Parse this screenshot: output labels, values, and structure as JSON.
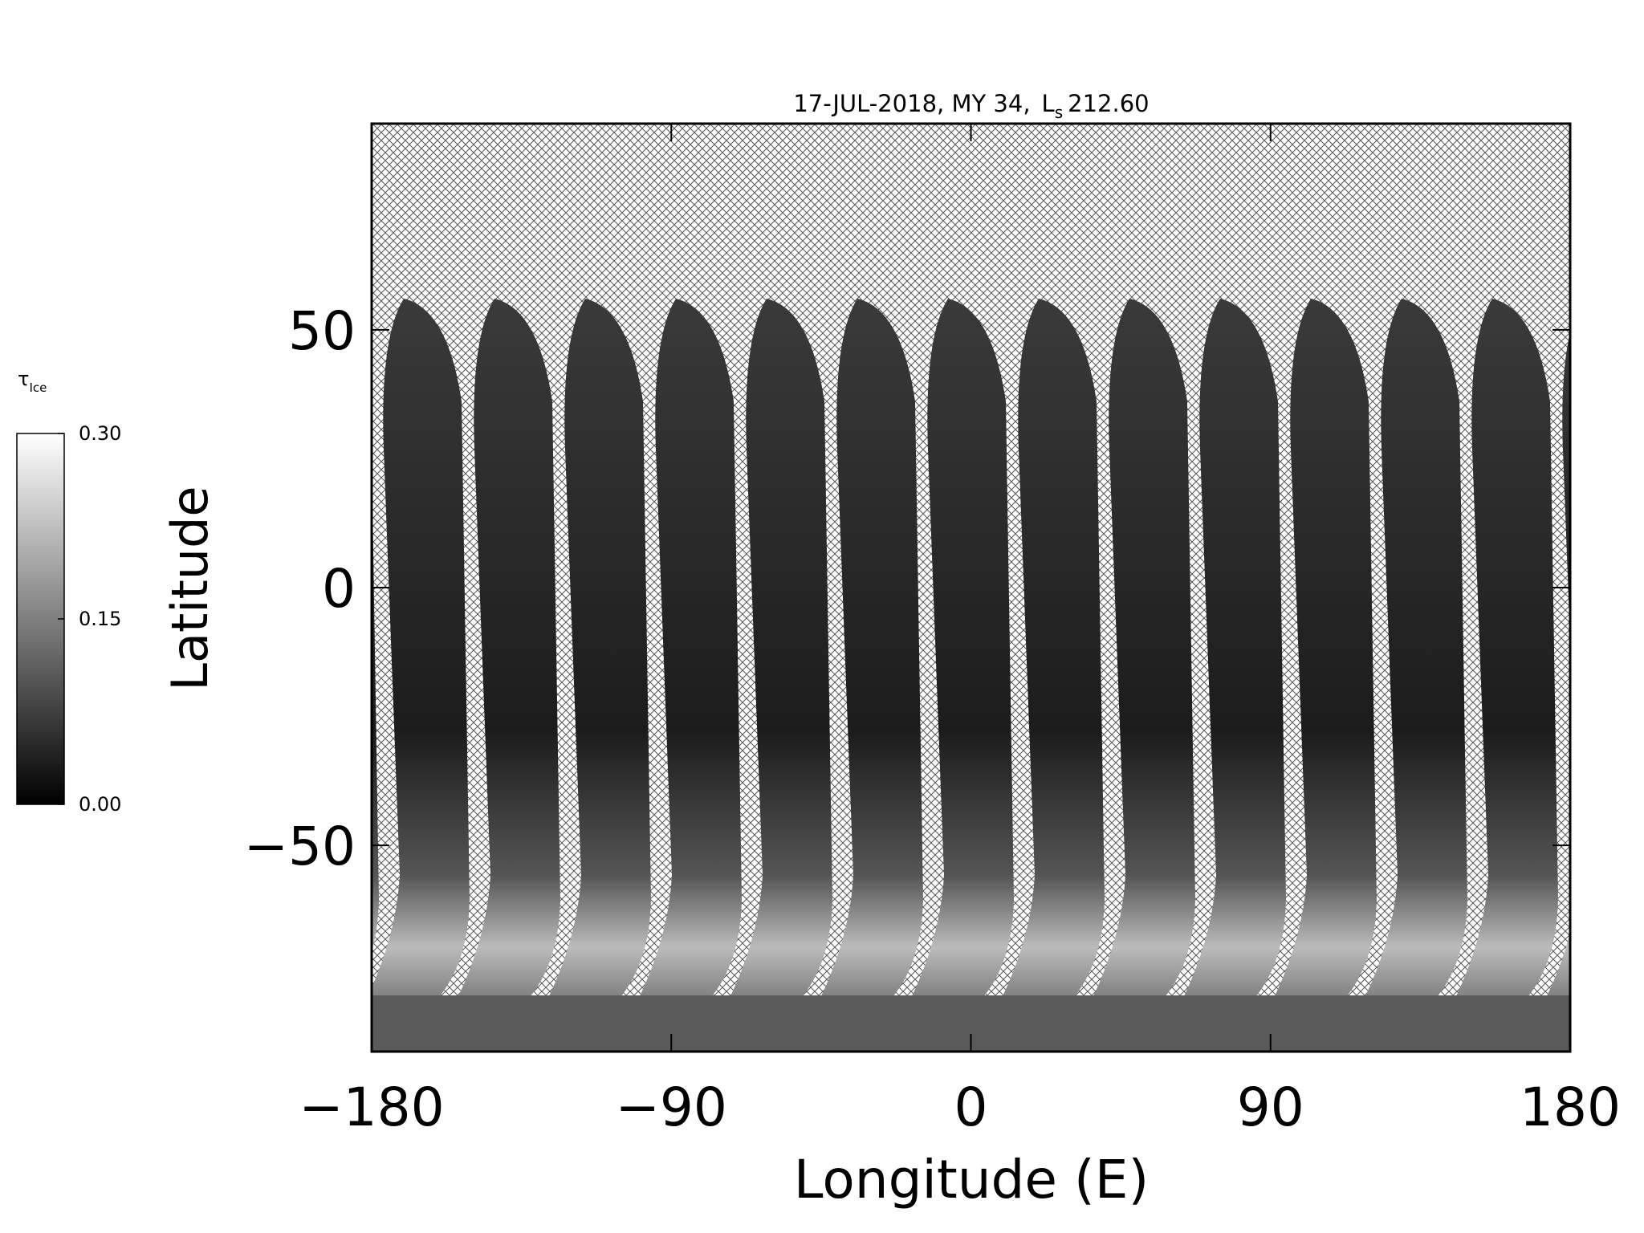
{
  "chart_data": {
    "type": "map",
    "title": {
      "date": "17-JUL-2018, MY 34,",
      "symbol": "L",
      "subscript": "s",
      "value": "212.60"
    },
    "x_label": "Longitude (E)",
    "y_label": "Latitude",
    "xlim": [
      -180,
      180
    ],
    "ylim": [
      -90,
      90
    ],
    "xticks": [
      {
        "value": -180,
        "label": "−180"
      },
      {
        "value": -90,
        "label": "−90"
      },
      0,
      90,
      180
    ],
    "yticks": [
      {
        "value": -50,
        "label": "−50"
      },
      0,
      50
    ],
    "colorbar": {
      "symbol": "τ",
      "subscript": "Ice",
      "lim": [
        0,
        0.3
      ],
      "ticks": [
        {
          "value": 0,
          "label": "0.00"
        },
        {
          "value": 0.15,
          "label": "0.15"
        },
        {
          "value": 0.3,
          "label": "0.30"
        }
      ],
      "colors": [
        "#000000",
        "#ffffff"
      ]
    }
  }
}
